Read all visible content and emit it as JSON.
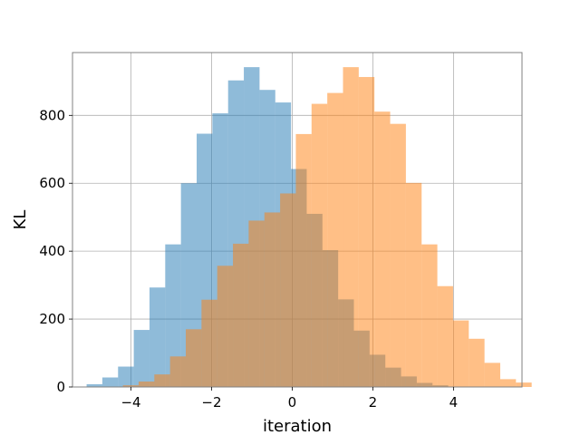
{
  "chart_data": {
    "type": "histogram",
    "title": "",
    "xlabel": "iteration",
    "ylabel": "KL",
    "xlim": [
      -5.45,
      5.7
    ],
    "ylim": [
      0,
      985
    ],
    "grid": true,
    "legend": "none",
    "xticks": [
      -4,
      -2,
      0,
      2,
      4
    ],
    "xtick_labels": [
      "−4",
      "−2",
      "0",
      "2",
      "4"
    ],
    "yticks": [
      0,
      200,
      400,
      600,
      800
    ],
    "ytick_labels": [
      "0",
      "200",
      "400",
      "600",
      "800"
    ],
    "series": [
      {
        "color": "#1f77b4",
        "opacity": 0.5,
        "bin_start": -5.1,
        "bin_width": 0.39,
        "counts": [
          8,
          28,
          60,
          168,
          293,
          420,
          600,
          746,
          806,
          903,
          942,
          875,
          838,
          642,
          510,
          403,
          258,
          166,
          95,
          57,
          31,
          12,
          5
        ]
      },
      {
        "color": "#ff7f0e",
        "opacity": 0.5,
        "bin_start": -4.2,
        "bin_width": 0.39,
        "counts": [
          5,
          16,
          37,
          90,
          170,
          257,
          357,
          422,
          490,
          514,
          570,
          745,
          834,
          866,
          942,
          913,
          811,
          775,
          601,
          420,
          297,
          196,
          142,
          71,
          23,
          13
        ]
      }
    ]
  }
}
